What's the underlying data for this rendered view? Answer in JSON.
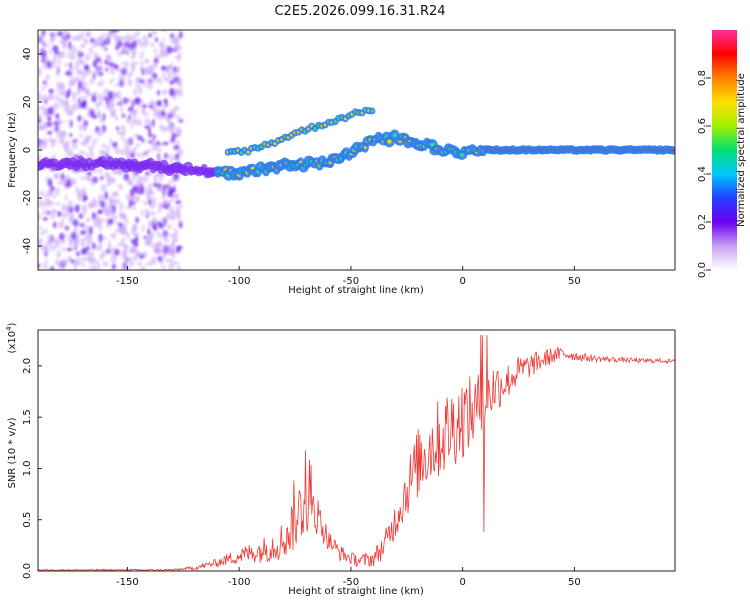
{
  "title": "C2E5.2026.099.16.31.R24",
  "colors": {
    "snr_line": "#ef3b36",
    "band_core": "#e8323a",
    "band_edge": "#2f7df0",
    "scatter": "#7a2cf0",
    "scatter_light": "#c9a6f5"
  },
  "chart_data": [
    {
      "type": "heatmap",
      "name": "spectrogram",
      "xlabel": "Height of straight line (km)",
      "ylabel": "Frequency (Hz)",
      "xlim": [
        -190,
        95
      ],
      "ylim": [
        -50,
        50
      ],
      "x_ticks": [
        -150,
        -100,
        -50,
        0,
        50
      ],
      "y_ticks": [
        -40,
        -20,
        0,
        20,
        40
      ],
      "colorbar": {
        "label": "Normalized spectral amplitude",
        "range": [
          0.0,
          1.0
        ],
        "ticks": [
          "0.0",
          "0.2",
          "0.4",
          "0.6",
          "0.8"
        ],
        "tick_values": [
          0.0,
          0.2,
          0.4,
          0.6,
          0.8
        ],
        "stops": [
          "#ffffff",
          "#c8a0f5",
          "#6a00f0",
          "#2040ff",
          "#00c8ff",
          "#00e070",
          "#a0f000",
          "#ffe000",
          "#ff8000",
          "#ff0000",
          "#ff30a0"
        ]
      },
      "ridge_main": {
        "x": [
          -190,
          -150,
          -120,
          -100,
          -90,
          -80,
          -70,
          -60,
          -50,
          -40,
          -30,
          -20,
          -10,
          0,
          10,
          20,
          30,
          40,
          50,
          60,
          70,
          80,
          90,
          95
        ],
        "y": [
          -6,
          -6,
          -8,
          -10,
          -8,
          -6,
          -6,
          -5,
          -1,
          4,
          5,
          3,
          0,
          -1,
          0,
          0,
          0,
          0,
          0,
          0,
          0,
          0,
          0,
          0
        ]
      },
      "ridge_upper": {
        "x": [
          -105,
          -95,
          -85,
          -75,
          -65,
          -55,
          -45,
          -40
        ],
        "y": [
          -1,
          0,
          3,
          7,
          10,
          13,
          16,
          17
        ]
      },
      "noise_region_x": [
        -190,
        -126
      ]
    },
    {
      "type": "line",
      "name": "snr",
      "xlabel": "Height of straight line (km)",
      "ylabel": "SNR (10 * v/v)",
      "scale_label": "(x10",
      "scale_exp": "4",
      "scale_suffix": ")",
      "xlim": [
        -190,
        95
      ],
      "ylim": [
        0.0,
        2.35
      ],
      "x_ticks": [
        -150,
        -100,
        -50,
        0,
        50
      ],
      "y_ticks": [
        "0.0",
        "0.5",
        "1.0",
        "1.5",
        "2.0"
      ],
      "y_tick_values": [
        0.0,
        0.5,
        1.0,
        1.5,
        2.0
      ],
      "envelope": {
        "x": [
          -190,
          -130,
          -120,
          -110,
          -100,
          -90,
          -80,
          -75,
          -70,
          -65,
          -60,
          -55,
          -50,
          -45,
          -40,
          -35,
          -30,
          -25,
          -20,
          -15,
          -10,
          -5,
          0,
          5,
          10,
          15,
          20,
          25,
          30,
          35,
          40,
          45,
          50,
          55,
          60,
          70,
          80,
          90,
          95
        ],
        "y": [
          0.01,
          0.01,
          0.03,
          0.08,
          0.15,
          0.2,
          0.3,
          0.5,
          0.7,
          0.55,
          0.3,
          0.18,
          0.12,
          0.1,
          0.12,
          0.25,
          0.5,
          0.8,
          1.05,
          1.2,
          1.3,
          1.4,
          1.5,
          1.55,
          1.7,
          1.8,
          1.85,
          1.95,
          2.0,
          2.05,
          2.1,
          2.12,
          2.1,
          2.08,
          2.07,
          2.06,
          2.05,
          2.05,
          2.04
        ]
      },
      "amplitude": {
        "x": [
          -190,
          -125,
          -110,
          -100,
          -90,
          -80,
          -75,
          -70,
          -65,
          -60,
          -50,
          -40,
          -30,
          -25,
          -20,
          -15,
          -10,
          -5,
          0,
          5,
          10,
          15,
          20,
          30,
          40,
          50,
          60,
          70,
          95
        ],
        "a": [
          0.005,
          0.01,
          0.04,
          0.08,
          0.12,
          0.2,
          0.3,
          0.35,
          0.2,
          0.1,
          0.06,
          0.08,
          0.18,
          0.28,
          0.35,
          0.38,
          0.4,
          0.42,
          0.4,
          0.35,
          0.3,
          0.25,
          0.18,
          0.12,
          0.08,
          0.05,
          0.03,
          0.025,
          0.02
        ]
      }
    }
  ]
}
